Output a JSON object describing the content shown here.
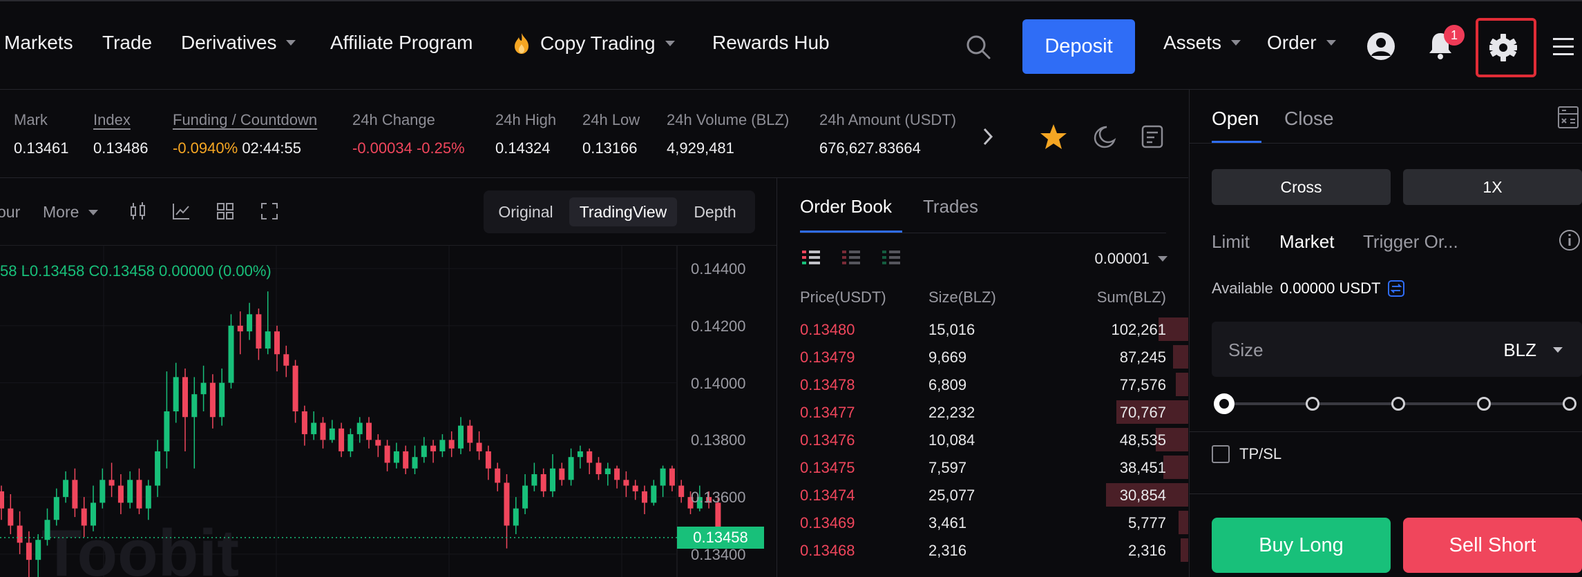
{
  "nav": {
    "items": [
      {
        "label": "Markets",
        "caret": false
      },
      {
        "label": "Trade",
        "caret": false
      },
      {
        "label": "Derivatives",
        "caret": true
      },
      {
        "label": "Affiliate Program",
        "caret": false
      },
      {
        "label": "Copy Trading",
        "caret": true
      },
      {
        "label": "Rewards Hub",
        "caret": false
      }
    ],
    "deposit_label": "Deposit",
    "assets_label": "Assets",
    "order_label": "Order",
    "notification_count": "1"
  },
  "ticker": {
    "mark_label": "Mark",
    "mark_value": "0.13461",
    "index_label": "Index",
    "index_value": "0.13486",
    "funding_label": "Funding / Countdown",
    "funding_rate": "-0.0940%",
    "funding_countdown": "02:44:55",
    "change_label": "24h Change",
    "change_abs": "-0.00034",
    "change_pct": "-0.25%",
    "high_label": "24h High",
    "high_value": "0.14324",
    "low_label": "24h Low",
    "low_value": "0.13166",
    "volume_label": "24h Volume (BLZ)",
    "volume_value": "4,929,481",
    "amount_label": "24h Amount (USDT)",
    "amount_value": "676,627.83664"
  },
  "chart_toolbar": {
    "interval_label": "our",
    "more_label": "More",
    "views": [
      "Original",
      "TradingView",
      "Depth"
    ],
    "active_view": "TradingView"
  },
  "chart_data": {
    "type": "candlestick",
    "ohlc_prefix": "58",
    "ohlc_low": "L0.13458",
    "ohlc_close": "C0.13458",
    "ohlc_change": "0.00000 (0.00%)",
    "price_ticks": [
      "0.14400",
      "0.14200",
      "0.14000",
      "0.13800",
      "0.13600",
      "0.13400"
    ],
    "ylim": [
      0.1332,
      0.1448
    ],
    "last_price": "0.13458",
    "watermark": "Toobit",
    "candles": [
      [
        0.1362,
        0.1356,
        0.1364,
        0.1352
      ],
      [
        0.1356,
        0.135,
        0.1361,
        0.1347
      ],
      [
        0.135,
        0.1344,
        0.1355,
        0.134
      ],
      [
        0.1344,
        0.1338,
        0.1348,
        0.133
      ],
      [
        0.1338,
        0.1345,
        0.1347,
        0.1332
      ],
      [
        0.1345,
        0.1352,
        0.1356,
        0.1343
      ],
      [
        0.1352,
        0.136,
        0.1363,
        0.135
      ],
      [
        0.136,
        0.1366,
        0.1369,
        0.1358
      ],
      [
        0.1366,
        0.1356,
        0.137,
        0.1353
      ],
      [
        0.1356,
        0.135,
        0.136,
        0.1346
      ],
      [
        0.135,
        0.1358,
        0.1364,
        0.1348
      ],
      [
        0.1358,
        0.1366,
        0.137,
        0.1356
      ],
      [
        0.1366,
        0.1364,
        0.1372,
        0.136
      ],
      [
        0.1364,
        0.1358,
        0.1368,
        0.1354
      ],
      [
        0.1358,
        0.1366,
        0.1369,
        0.1356
      ],
      [
        0.1366,
        0.1356,
        0.137,
        0.1354
      ],
      [
        0.1356,
        0.1364,
        0.1366,
        0.1352
      ],
      [
        0.1364,
        0.1376,
        0.138,
        0.136
      ],
      [
        0.1376,
        0.139,
        0.1404,
        0.137
      ],
      [
        0.139,
        0.1402,
        0.1407,
        0.1386
      ],
      [
        0.1402,
        0.1388,
        0.1405,
        0.1376
      ],
      [
        0.1388,
        0.1396,
        0.1402,
        0.137
      ],
      [
        0.1396,
        0.14,
        0.1406,
        0.139
      ],
      [
        0.14,
        0.1388,
        0.1403,
        0.1384
      ],
      [
        0.1388,
        0.14,
        0.1405,
        0.1385
      ],
      [
        0.14,
        0.142,
        0.1424,
        0.1398
      ],
      [
        0.142,
        0.1418,
        0.1425,
        0.141
      ],
      [
        0.1418,
        0.1424,
        0.1428,
        0.1415
      ],
      [
        0.1424,
        0.1412,
        0.1426,
        0.1408
      ],
      [
        0.1412,
        0.1418,
        0.1432,
        0.141
      ],
      [
        0.1418,
        0.141,
        0.142,
        0.1404
      ],
      [
        0.141,
        0.1406,
        0.1413,
        0.1402
      ],
      [
        0.1406,
        0.139,
        0.1408,
        0.1386
      ],
      [
        0.139,
        0.1382,
        0.1392,
        0.1378
      ],
      [
        0.1382,
        0.1386,
        0.139,
        0.138
      ],
      [
        0.1386,
        0.138,
        0.1388,
        0.1377
      ],
      [
        0.138,
        0.1384,
        0.1387,
        0.1379
      ],
      [
        0.1384,
        0.1376,
        0.1386,
        0.1374
      ],
      [
        0.1376,
        0.1382,
        0.1384,
        0.1374
      ],
      [
        0.1382,
        0.1386,
        0.1388,
        0.1379
      ],
      [
        0.1386,
        0.138,
        0.1388,
        0.1377
      ],
      [
        0.138,
        0.1378,
        0.1382,
        0.1374
      ],
      [
        0.1378,
        0.1372,
        0.138,
        0.1369
      ],
      [
        0.1372,
        0.1376,
        0.1379,
        0.137
      ],
      [
        0.1376,
        0.137,
        0.1378,
        0.1368
      ],
      [
        0.137,
        0.1374,
        0.1378,
        0.1368
      ],
      [
        0.1374,
        0.1378,
        0.1381,
        0.1372
      ],
      [
        0.1378,
        0.1376,
        0.138,
        0.1372
      ],
      [
        0.1376,
        0.138,
        0.1382,
        0.1374
      ],
      [
        0.138,
        0.1377,
        0.1383,
        0.1374
      ],
      [
        0.1377,
        0.1385,
        0.1388,
        0.1375
      ],
      [
        0.1385,
        0.1379,
        0.1387,
        0.1376
      ],
      [
        0.1379,
        0.1376,
        0.1383,
        0.1373
      ],
      [
        0.1376,
        0.137,
        0.1378,
        0.1366
      ],
      [
        0.137,
        0.1365,
        0.1372,
        0.1362
      ],
      [
        0.1365,
        0.135,
        0.1368,
        0.1342
      ],
      [
        0.135,
        0.1356,
        0.136,
        0.1347
      ],
      [
        0.1356,
        0.1364,
        0.1368,
        0.1354
      ],
      [
        0.1364,
        0.1368,
        0.1372,
        0.1362
      ],
      [
        0.1368,
        0.1362,
        0.137,
        0.136
      ],
      [
        0.1362,
        0.137,
        0.1375,
        0.136
      ],
      [
        0.137,
        0.1366,
        0.1372,
        0.1364
      ],
      [
        0.1366,
        0.1374,
        0.1377,
        0.1364
      ],
      [
        0.1374,
        0.1376,
        0.1378,
        0.137
      ],
      [
        0.1376,
        0.1372,
        0.1377,
        0.1368
      ],
      [
        0.1372,
        0.1368,
        0.1374,
        0.1366
      ],
      [
        0.1368,
        0.137,
        0.1372,
        0.1364
      ],
      [
        0.137,
        0.1366,
        0.1371,
        0.1363
      ],
      [
        0.1366,
        0.1364,
        0.1369,
        0.136
      ],
      [
        0.1364,
        0.1362,
        0.1366,
        0.1359
      ],
      [
        0.1362,
        0.1358,
        0.1364,
        0.1354
      ],
      [
        0.1358,
        0.1364,
        0.1366,
        0.1357
      ],
      [
        0.1364,
        0.137,
        0.1371,
        0.136
      ],
      [
        0.137,
        0.1364,
        0.1371,
        0.1362
      ],
      [
        0.1364,
        0.136,
        0.1366,
        0.1358
      ],
      [
        0.136,
        0.1356,
        0.1362,
        0.1354
      ],
      [
        0.1356,
        0.136,
        0.1364,
        0.1355
      ],
      [
        0.136,
        0.1358,
        0.1362,
        0.1356
      ],
      [
        0.1358,
        0.13458,
        0.136,
        0.1344
      ]
    ]
  },
  "orderbook": {
    "tabs": [
      "Order Book",
      "Trades"
    ],
    "precision": "0.00001",
    "headers": {
      "price": "Price(USDT)",
      "size": "Size(BLZ)",
      "sum": "Sum(BLZ)"
    },
    "asks": [
      {
        "price": "0.13480",
        "size": "15,016",
        "sum": "102,261",
        "depth": 0.12
      },
      {
        "price": "0.13479",
        "size": "9,669",
        "sum": "87,245",
        "depth": 0.06
      },
      {
        "price": "0.13478",
        "size": "6,809",
        "sum": "77,576",
        "depth": 0.05
      },
      {
        "price": "0.13477",
        "size": "22,232",
        "sum": "70,767",
        "depth": 0.29
      },
      {
        "price": "0.13476",
        "size": "10,084",
        "sum": "48,535",
        "depth": 0.13
      },
      {
        "price": "0.13475",
        "size": "7,597",
        "sum": "38,451",
        "depth": 0.1
      },
      {
        "price": "0.13474",
        "size": "25,077",
        "sum": "30,854",
        "depth": 0.33
      },
      {
        "price": "0.13469",
        "size": "3,461",
        "sum": "5,777",
        "depth": 0.04
      },
      {
        "price": "0.13468",
        "size": "2,316",
        "sum": "2,316",
        "depth": 0.03
      }
    ]
  },
  "trade": {
    "tabs": [
      "Open",
      "Close"
    ],
    "margin_mode": "Cross",
    "leverage": "1X",
    "order_types": [
      "Limit",
      "Market",
      "Trigger Or..."
    ],
    "available_label": "Available",
    "available_value": "0.00000 USDT",
    "size_label": "Size",
    "size_unit": "BLZ",
    "tpsl_label": "TP/SL",
    "buy_label": "Buy Long",
    "sell_label": "Sell Short"
  },
  "colors": {
    "accent": "#2f6df6",
    "up": "#18c07a",
    "down": "#f0465c",
    "star": "#f5a623"
  }
}
